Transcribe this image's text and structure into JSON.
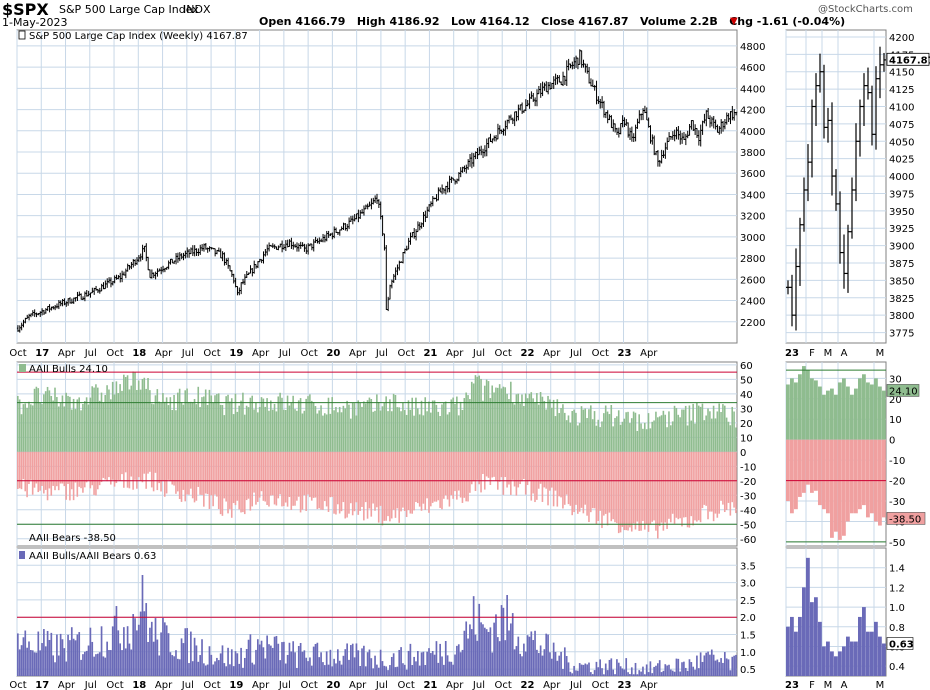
{
  "header": {
    "symbol": "$SPX",
    "name": "S&P 500 Large Cap Index",
    "exchange": "INDX",
    "date": "1-May-2023",
    "stats_text": "Open 4166.79   High 4186.92   Low 4164.12   Close 4167.87   Volume 2.2B   Chg -1.61 (-0.04%)",
    "watermark": "@StockCharts.com"
  },
  "colors": {
    "price": "#000000",
    "bull_fill": "#8fbc8f",
    "bear_fill": "#f0a0a0",
    "ratio_fill": "#6a6ab8",
    "red_line": "#cc0033",
    "green_line": "#2e7d32",
    "grid": "#c8d8e8"
  },
  "chart_data": [
    {
      "type": "bar",
      "panel": "price",
      "legend": "S&P 500 Large Cap Index (Weekly) 4167.87",
      "last_value_label": "4167.87",
      "ylim": [
        2000,
        4950
      ],
      "yticks": [
        2200,
        2400,
        2600,
        2800,
        3000,
        3200,
        3400,
        3600,
        3800,
        4000,
        4200,
        4400,
        4600,
        4800
      ],
      "x_tick_labels": [
        "Oct",
        "17",
        "Apr",
        "Jul",
        "Oct",
        "18",
        "Apr",
        "Jul",
        "Oct",
        "19",
        "Apr",
        "Jul",
        "Oct",
        "20",
        "Apr",
        "Jul",
        "Oct",
        "21",
        "Apr",
        "Jul",
        "Oct",
        "22",
        "Apr",
        "Jul",
        "Oct",
        "23",
        "Apr"
      ],
      "anchors": [
        [
          0,
          2140
        ],
        [
          6,
          2250
        ],
        [
          20,
          2350
        ],
        [
          40,
          2480
        ],
        [
          55,
          2620
        ],
        [
          68,
          2880
        ],
        [
          71,
          2640
        ],
        [
          88,
          2820
        ],
        [
          100,
          2900
        ],
        [
          110,
          2820
        ],
        [
          116,
          2600
        ],
        [
          118,
          2450
        ],
        [
          120,
          2550
        ],
        [
          134,
          2880
        ],
        [
          146,
          2950
        ],
        [
          154,
          2880
        ],
        [
          166,
          3000
        ],
        [
          180,
          3150
        ],
        [
          190,
          3300
        ],
        [
          193,
          3380
        ],
        [
          196,
          3050
        ],
        [
          197,
          2900
        ],
        [
          198,
          2300
        ],
        [
          200,
          2550
        ],
        [
          210,
          2950
        ],
        [
          222,
          3300
        ],
        [
          228,
          3450
        ],
        [
          238,
          3600
        ],
        [
          248,
          3800
        ],
        [
          256,
          3950
        ],
        [
          266,
          4150
        ],
        [
          274,
          4250
        ],
        [
          284,
          4420
        ],
        [
          292,
          4480
        ],
        [
          296,
          4580
        ],
        [
          302,
          4700
        ],
        [
          306,
          4520
        ],
        [
          312,
          4300
        ],
        [
          318,
          4100
        ],
        [
          322,
          3950
        ],
        [
          326,
          4100
        ],
        [
          330,
          3900
        ],
        [
          336,
          4220
        ],
        [
          340,
          3950
        ],
        [
          344,
          3700
        ],
        [
          348,
          3850
        ],
        [
          353,
          4000
        ],
        [
          358,
          3900
        ],
        [
          362,
          4080
        ],
        [
          366,
          3950
        ],
        [
          370,
          4150
        ],
        [
          376,
          4000
        ],
        [
          382,
          4150
        ],
        [
          386,
          4167
        ]
      ]
    },
    {
      "type": "bar",
      "panel": "sentiment",
      "bulls_legend": "AAII Bulls 24.10",
      "bears_legend": "AAII Bears -38.50",
      "bulls_last_label": "24.10",
      "bears_last_label": "-38.50",
      "ylim": [
        -65,
        62
      ],
      "yticks": [
        -60,
        -50,
        -40,
        -30,
        -20,
        -10,
        0,
        10,
        20,
        30,
        40,
        50,
        60
      ],
      "ref_lines": {
        "red": [
          55,
          -20
        ],
        "green": [
          34,
          -50
        ]
      },
      "bulls_anchors": [
        [
          0,
          32
        ],
        [
          10,
          38
        ],
        [
          30,
          35
        ],
        [
          50,
          42
        ],
        [
          68,
          52
        ],
        [
          72,
          35
        ],
        [
          95,
          38
        ],
        [
          115,
          32
        ],
        [
          130,
          35
        ],
        [
          160,
          32
        ],
        [
          190,
          30
        ],
        [
          200,
          36
        ],
        [
          210,
          30
        ],
        [
          230,
          30
        ],
        [
          240,
          32
        ],
        [
          246,
          50
        ],
        [
          250,
          42
        ],
        [
          262,
          45
        ],
        [
          270,
          38
        ],
        [
          290,
          30
        ],
        [
          300,
          25
        ],
        [
          320,
          25
        ],
        [
          340,
          20
        ],
        [
          350,
          25
        ],
        [
          360,
          25
        ],
        [
          370,
          30
        ],
        [
          386,
          24
        ]
      ],
      "bears_anchors": [
        [
          0,
          -25
        ],
        [
          20,
          -28
        ],
        [
          40,
          -25
        ],
        [
          60,
          -20
        ],
        [
          68,
          -18
        ],
        [
          80,
          -25
        ],
        [
          100,
          -32
        ],
        [
          116,
          -42
        ],
        [
          130,
          -30
        ],
        [
          150,
          -35
        ],
        [
          170,
          -38
        ],
        [
          190,
          -42
        ],
        [
          200,
          -45
        ],
        [
          220,
          -38
        ],
        [
          240,
          -30
        ],
        [
          250,
          -22
        ],
        [
          270,
          -25
        ],
        [
          290,
          -32
        ],
        [
          300,
          -40
        ],
        [
          320,
          -48
        ],
        [
          330,
          -52
        ],
        [
          340,
          -55
        ],
        [
          350,
          -50
        ],
        [
          360,
          -48
        ],
        [
          370,
          -42
        ],
        [
          386,
          -38
        ]
      ]
    },
    {
      "type": "bar",
      "panel": "ratio",
      "legend": "AAII Bulls/AAII Bears 0.63",
      "last_value_label": "0.63",
      "ylim": [
        0.3,
        4.0
      ],
      "yticks": [
        0.5,
        1.0,
        1.5,
        2.0,
        2.5,
        3.0,
        3.5
      ],
      "ref_lines": {
        "red": [
          2.0
        ]
      },
      "anchors": [
        [
          0,
          1.3
        ],
        [
          20,
          1.1
        ],
        [
          40,
          1.3
        ],
        [
          60,
          1.8
        ],
        [
          68,
          2.4
        ],
        [
          72,
          1.5
        ],
        [
          90,
          1.2
        ],
        [
          116,
          0.8
        ],
        [
          130,
          1.2
        ],
        [
          150,
          0.9
        ],
        [
          170,
          0.9
        ],
        [
          200,
          0.8
        ],
        [
          220,
          0.9
        ],
        [
          238,
          1.2
        ],
        [
          246,
          2.0
        ],
        [
          250,
          1.6
        ],
        [
          262,
          1.9
        ],
        [
          270,
          1.5
        ],
        [
          290,
          0.9
        ],
        [
          300,
          0.6
        ],
        [
          320,
          0.6
        ],
        [
          340,
          0.5
        ],
        [
          350,
          0.6
        ],
        [
          360,
          0.6
        ],
        [
          370,
          0.8
        ],
        [
          386,
          0.63
        ]
      ]
    },
    {
      "type": "bar",
      "panel": "zoom-price",
      "ylim": [
        3760,
        4210
      ],
      "yticks": [
        3775,
        3800,
        3825,
        3850,
        3875,
        3900,
        3925,
        3950,
        3975,
        4000,
        4025,
        4050,
        4075,
        4100,
        4125,
        4150,
        4175,
        4200
      ],
      "x_tick_labels": [
        "23",
        "F",
        "M",
        "A",
        "M"
      ],
      "last_value_label": "4167.87",
      "anchors": [
        [
          0,
          3840
        ],
        [
          1,
          3800
        ],
        [
          2,
          3870
        ],
        [
          3,
          3930
        ],
        [
          4,
          3980
        ],
        [
          5,
          4020
        ],
        [
          6,
          4100
        ],
        [
          7,
          4130
        ],
        [
          8,
          4150
        ],
        [
          9,
          4070
        ],
        [
          10,
          4080
        ],
        [
          11,
          4000
        ],
        [
          12,
          3960
        ],
        [
          13,
          3890
        ],
        [
          14,
          3860
        ],
        [
          15,
          3920
        ],
        [
          16,
          3980
        ],
        [
          17,
          4050
        ],
        [
          18,
          4100
        ],
        [
          19,
          4130
        ],
        [
          20,
          4120
        ],
        [
          21,
          4060
        ],
        [
          22,
          4140
        ],
        [
          23,
          4160
        ],
        [
          24,
          4167
        ]
      ]
    },
    {
      "type": "bar",
      "panel": "zoom-sentiment",
      "ylim": [
        -52,
        38
      ],
      "yticks": [
        -50,
        -40,
        -30,
        -20,
        -10,
        0,
        10,
        20,
        30
      ],
      "bulls": [
        27,
        30,
        28,
        32,
        36,
        34,
        30,
        29,
        26,
        22,
        24,
        25,
        22,
        28,
        30,
        26,
        22,
        25,
        30,
        32,
        28,
        27,
        30,
        26,
        24
      ],
      "bears": [
        -30,
        -36,
        -34,
        -28,
        -26,
        -22,
        -26,
        -25,
        -32,
        -34,
        -36,
        -48,
        -45,
        -49,
        -47,
        -40,
        -36,
        -36,
        -34,
        -32,
        -38,
        -36,
        -40,
        -42,
        -38
      ]
    },
    {
      "type": "bar",
      "panel": "zoom-ratio",
      "ylim": [
        0.3,
        1.6
      ],
      "yticks": [
        0.4,
        0.6,
        0.8,
        1.0,
        1.2,
        1.4
      ],
      "values": [
        0.8,
        0.9,
        0.75,
        0.9,
        1.2,
        1.5,
        1.05,
        1.1,
        0.85,
        0.6,
        0.65,
        0.55,
        0.5,
        0.55,
        0.6,
        0.7,
        0.65,
        0.65,
        0.9,
        1.0,
        0.75,
        0.75,
        0.85,
        0.7,
        0.63
      ]
    }
  ]
}
